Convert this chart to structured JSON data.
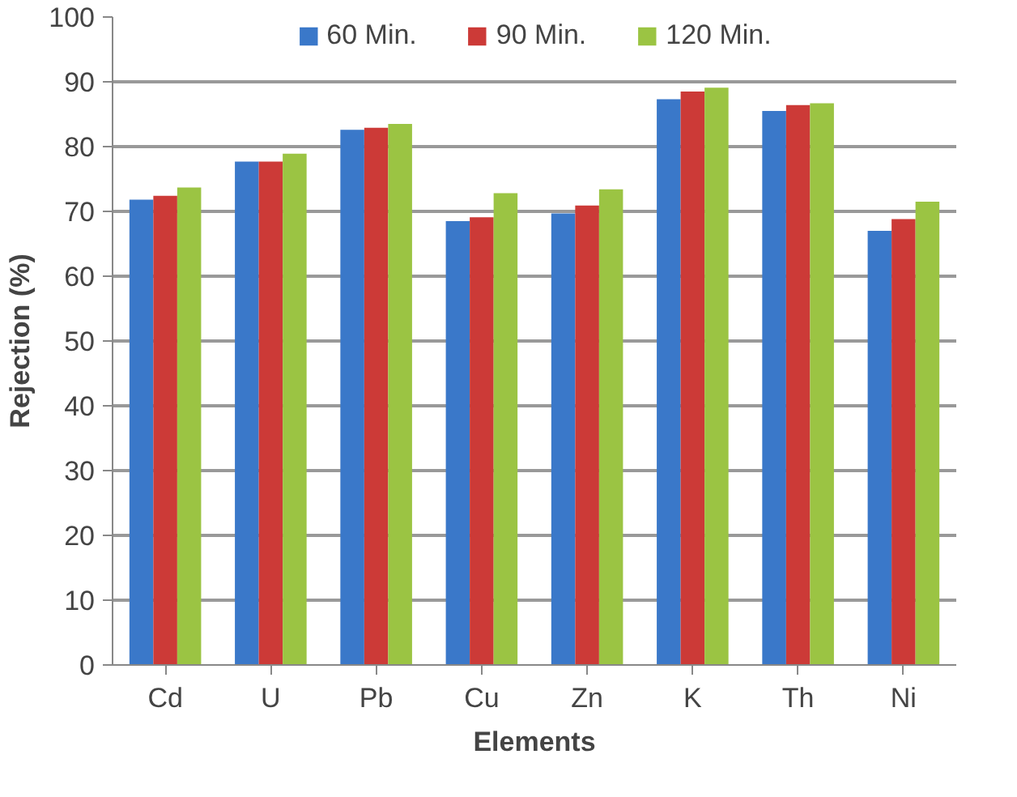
{
  "chart_data": {
    "type": "bar",
    "xlabel": "Elements",
    "ylabel": "Rejection (%)",
    "categories": [
      "Cd",
      "U",
      "Pb",
      "Cu",
      "Zn",
      "K",
      "Th",
      "Ni"
    ],
    "series": [
      {
        "name": "60 Min.",
        "color": "#3a78c9",
        "values": [
          71.8,
          77.7,
          82.6,
          68.5,
          69.7,
          87.3,
          85.5,
          67.0
        ]
      },
      {
        "name": "90 Min.",
        "color": "#cc3a37",
        "values": [
          72.4,
          77.7,
          82.9,
          69.1,
          70.9,
          88.5,
          86.4,
          68.8
        ]
      },
      {
        "name": "120 Min.",
        "color": "#9bc443",
        "values": [
          73.7,
          78.9,
          83.5,
          72.8,
          73.4,
          89.1,
          86.7,
          71.5
        ]
      }
    ],
    "ylim": [
      0,
      100
    ],
    "yticks": [
      0,
      10,
      20,
      30,
      40,
      50,
      60,
      70,
      80,
      90,
      100
    ],
    "grid": "y",
    "legend": "top"
  }
}
